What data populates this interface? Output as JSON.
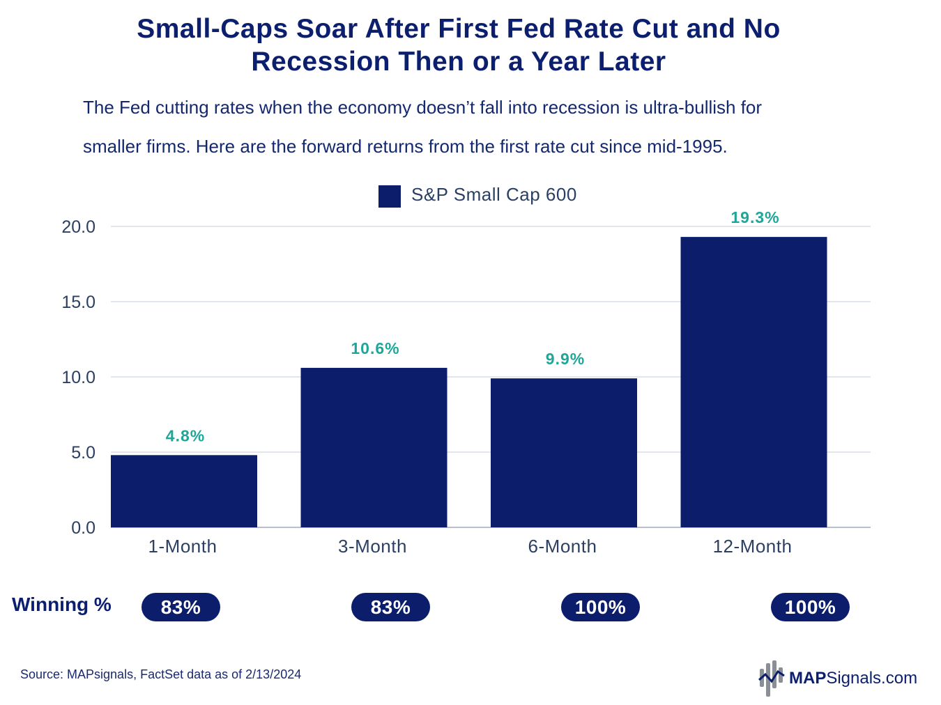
{
  "title_line1": "Small-Caps Soar After First Fed Rate Cut and No",
  "title_line2": "Recession Then or a Year Later",
  "subtitle_line1": "The Fed cutting rates when the economy doesn’t fall into recession is ultra-bullish for",
  "subtitle_line2": "smaller firms. Here are the forward returns from the first rate cut since mid-1995.",
  "chart_data": {
    "type": "bar",
    "title": "Small-Caps Soar After First Fed Rate Cut and No Recession Then or a Year Later",
    "categories": [
      "1-Month",
      "3-Month",
      "6-Month",
      "12-Month"
    ],
    "series": [
      {
        "name": "S&P Small Cap 600",
        "values": [
          4.8,
          10.6,
          9.9,
          19.3
        ]
      }
    ],
    "data_labels": [
      "4.8%",
      "10.6%",
      "9.9%",
      "19.3%"
    ],
    "yticks": [
      0,
      5,
      10,
      15,
      20
    ],
    "ytick_labels": [
      "0.0",
      "5.0",
      "10.0",
      "15.0",
      "20.0"
    ],
    "ylim": [
      0,
      20
    ],
    "xlabel": "",
    "ylabel": "",
    "grid": true,
    "legend_position": "top-center",
    "bar_color": "#0b1d6b",
    "label_color": "#1fa699",
    "axis_text_color": "#2b3f63",
    "grid_color": "#d7dde6"
  },
  "winning": {
    "label": "Winning %",
    "values": [
      "83%",
      "83%",
      "100%",
      "100%"
    ]
  },
  "source": "Source: MAPsignals, FactSet data as of 2/13/2024",
  "logo": {
    "bold": "MAP",
    "regular": "Signals.com"
  }
}
